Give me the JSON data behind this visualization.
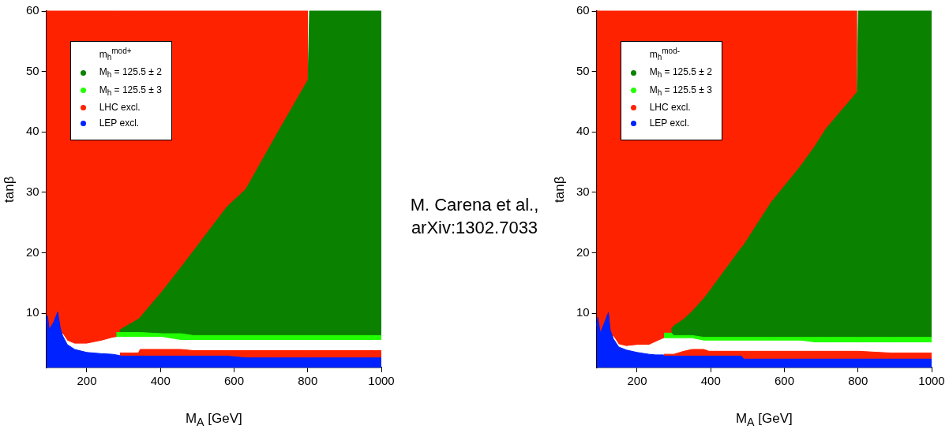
{
  "chart_data": [
    {
      "type": "area",
      "xlabel": "M$_{A}$ [GeV]",
      "ylabel": "tanβ",
      "legend": "top left",
      "legend_title": "m$_{h}$$^{mod+}$",
      "annotations": [
        "M. Carena et al., arXiv:1302.7033"
      ],
      "xlim": [
        90,
        1000
      ],
      "xticks": [
        200,
        400,
        600,
        800,
        1000
      ],
      "ylim": [
        1,
        60
      ],
      "yticks": [
        10,
        20,
        30,
        40,
        50,
        60
      ],
      "x": [
        90,
        93,
        98,
        110,
        121,
        128,
        134,
        147,
        167,
        200,
        240,
        270,
        280,
        289,
        290,
        340,
        345,
        405,
        455,
        490,
        581,
        632,
        717,
        801,
        805,
        1000
      ],
      "series": [
        {
          "name": "LEP excl.",
          "color": "#0022ff",
          "values": [
            8.4,
            9.6,
            7.3,
            8.5,
            10.2,
            7.5,
            6.3,
            4.8,
            4.0,
            3.5,
            3.3,
            3.2,
            3.1,
            3.0,
            2.9,
            2.9,
            2.9,
            2.9,
            2.9,
            2.9,
            2.9,
            2.6,
            2.6,
            2.6,
            2.6,
            2.6
          ]
        },
        {
          "name": "LHC excl.",
          "color": "#ff2200",
          "values": [
            null,
            null,
            null,
            null,
            null,
            null,
            null,
            null,
            null,
            null,
            null,
            null,
            null,
            null,
            3.4,
            3.4,
            4.0,
            4.0,
            4.0,
            3.8,
            3.8,
            3.8,
            3.8,
            3.8,
            3.8,
            3.8
          ]
        },
        {
          "color": "#ffffff",
          "values": [
            null,
            null,
            null,
            null,
            null,
            null,
            6.6,
            5.4,
            4.9,
            4.9,
            5.4,
            5.9,
            6.0,
            6.0,
            6.0,
            6.0,
            6.0,
            6.0,
            5.5,
            5.5,
            5.5,
            5.5,
            5.5,
            5.5,
            5.5,
            5.5
          ]
        },
        {
          "name": "M$_{h}$ = 125.5 ± 3",
          "color": "#22ff00",
          "values": [
            null,
            null,
            null,
            null,
            null,
            null,
            null,
            null,
            null,
            null,
            null,
            null,
            6.8,
            6.8,
            6.8,
            6.8,
            6.8,
            6.6,
            6.6,
            6.3,
            6.3,
            6.3,
            6.3,
            6.3,
            6.3,
            6.3
          ]
        },
        {
          "name": "M$_{h}$ = 125.5 ± 2",
          "color": "#0a8200",
          "values": [
            null,
            null,
            null,
            null,
            null,
            null,
            null,
            null,
            null,
            null,
            null,
            null,
            null,
            7.2,
            7.2,
            9.0,
            9.3,
            13.6,
            17.5,
            20.3,
            27.6,
            30.5,
            39.7,
            48.6,
            60,
            60
          ]
        },
        {
          "color": "#ff2200",
          "values": [
            60,
            60,
            60,
            60,
            60,
            60,
            60,
            60,
            60,
            60,
            60,
            60,
            60,
            60,
            60,
            60,
            60,
            60,
            60,
            60,
            60,
            60,
            60,
            60,
            null,
            null
          ]
        }
      ]
    },
    {
      "type": "area",
      "xlabel": "M$_{A}$ [GeV]",
      "ylabel": "tanβ",
      "legend": "top left",
      "legend_title": "m$_{h}$$^{mod-}$",
      "xlim": [
        90,
        1000
      ],
      "xticks": [
        200,
        400,
        600,
        800,
        1000
      ],
      "ylim": [
        1,
        60
      ],
      "yticks": [
        10,
        20,
        30,
        40,
        50,
        60
      ],
      "x": [
        90,
        93,
        100,
        112,
        122,
        127,
        135,
        150,
        171,
        200,
        232,
        250,
        272,
        273,
        293,
        300,
        327,
        350,
        381,
        395,
        483,
        490,
        564,
        645,
        683,
        713,
        798,
        801,
        890,
        1000
      ],
      "series": [
        {
          "name": "LEP excl.",
          "color": "#0022ff",
          "values": [
            7.9,
            9.3,
            6.7,
            8.5,
            10.1,
            7.2,
            5.8,
            4.4,
            3.9,
            3.5,
            3.2,
            3.1,
            3.1,
            2.9,
            2.9,
            2.9,
            2.9,
            2.9,
            2.9,
            2.9,
            2.9,
            2.4,
            2.4,
            2.4,
            2.4,
            2.4,
            2.4,
            2.4,
            2.4,
            2.4
          ]
        },
        {
          "name": "LHC excl.",
          "color": "#ff2200",
          "values": [
            null,
            null,
            null,
            null,
            null,
            null,
            null,
            null,
            null,
            null,
            null,
            null,
            null,
            3.2,
            3.2,
            3.2,
            3.7,
            4.0,
            4.0,
            3.7,
            3.7,
            3.7,
            3.7,
            3.7,
            3.7,
            3.7,
            3.7,
            3.7,
            3.4,
            3.4
          ]
        },
        {
          "color": "#ffffff",
          "values": [
            null,
            null,
            null,
            null,
            null,
            null,
            6.2,
            4.8,
            4.5,
            4.7,
            4.7,
            5.2,
            5.8,
            5.8,
            5.8,
            5.8,
            5.8,
            5.8,
            5.4,
            5.4,
            5.4,
            5.4,
            5.4,
            5.4,
            5.1,
            5.1,
            5.1,
            5.1,
            5.1,
            5.1
          ]
        },
        {
          "name": "M$_{h}$ = 125.5 ± 3",
          "color": "#22ff00",
          "values": [
            null,
            null,
            null,
            null,
            null,
            null,
            null,
            null,
            null,
            null,
            null,
            null,
            null,
            6.7,
            6.7,
            6.3,
            6.3,
            6.3,
            6.0,
            6.0,
            6.0,
            6.0,
            6.0,
            6.0,
            6.0,
            6.0,
            6.0,
            6.0,
            6.0,
            6.0
          ]
        },
        {
          "name": "M$_{h}$ = 125.5 ± 2",
          "color": "#0a8200",
          "values": [
            null,
            null,
            null,
            null,
            null,
            null,
            null,
            null,
            null,
            null,
            null,
            null,
            null,
            null,
            7.4,
            7.9,
            9.0,
            10.3,
            12.4,
            13.5,
            20.8,
            21.3,
            28.3,
            34.4,
            37.6,
            40.5,
            46.6,
            60,
            60,
            60
          ]
        },
        {
          "color": "#ff2200",
          "values": [
            60,
            60,
            60,
            60,
            60,
            60,
            60,
            60,
            60,
            60,
            60,
            60,
            60,
            60,
            60,
            60,
            60,
            60,
            60,
            60,
            60,
            60,
            60,
            60,
            60,
            60,
            60,
            null,
            null,
            null
          ]
        }
      ]
    }
  ]
}
